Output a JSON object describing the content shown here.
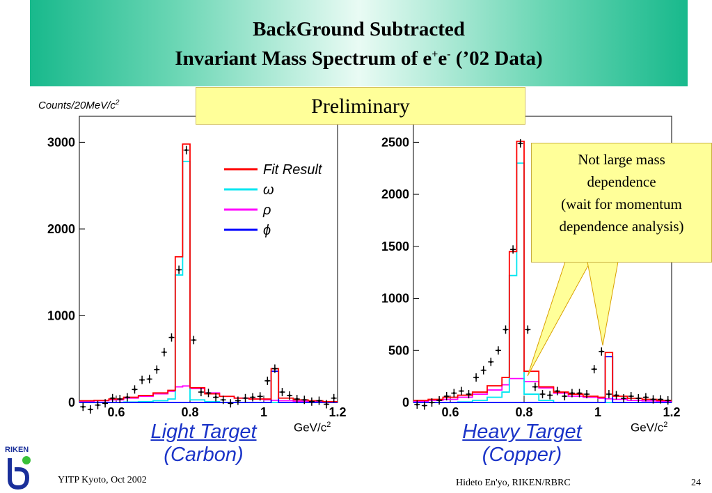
{
  "slide": {
    "title_line1": "BackGround Subtracted",
    "title_line2_parts": [
      "Invariant Mass Spectrum of e",
      "+",
      "e",
      "-",
      " (’02 Data)"
    ],
    "preliminary": "Preliminary",
    "callout_lines": [
      "Not large mass",
      "dependence",
      "(wait for momentum",
      "dependence analysis)"
    ],
    "y_label_parts": [
      "Counts/20MeV/c",
      "2"
    ],
    "footer_left": "YITP Kyoto, Oct 2002",
    "footer_center": "Hideto En'yo, RIKEN/RBRC",
    "page_number": "24",
    "logo_text": "RIKEN",
    "accent_color": "#18b98c",
    "caption_color": "#1b34c8",
    "callout_color": "#ffff99"
  },
  "chart_data": [
    {
      "type": "histogram",
      "caption_line1": "Light Target",
      "caption_line2": "(Carbon)",
      "x_unit_parts": [
        "GeV/c",
        "2"
      ],
      "xlim": [
        0.5,
        1.2
      ],
      "ylim": [
        0,
        3300
      ],
      "x_ticks": [
        "0.6",
        "0.8",
        "1",
        "1.2"
      ],
      "y_ticks": [
        "0",
        "1000",
        "2000",
        "3000"
      ],
      "legend": [
        {
          "name": "Fit Result",
          "color": "#ff0000"
        },
        {
          "name": "ω",
          "color": "#00e6f0"
        },
        {
          "name": "ρ",
          "color": "#ff00ff"
        },
        {
          "name": "ϕ",
          "color": "#0000ff"
        }
      ],
      "data_points": {
        "x": [
          0.51,
          0.53,
          0.55,
          0.57,
          0.59,
          0.61,
          0.63,
          0.65,
          0.67,
          0.69,
          0.71,
          0.73,
          0.75,
          0.77,
          0.79,
          0.81,
          0.83,
          0.85,
          0.87,
          0.89,
          0.91,
          0.93,
          0.95,
          0.97,
          0.99,
          1.01,
          1.03,
          1.05,
          1.07,
          1.09,
          1.11,
          1.13,
          1.15,
          1.17,
          1.19
        ],
        "y": [
          -50,
          -80,
          -30,
          -10,
          50,
          40,
          60,
          150,
          260,
          270,
          380,
          580,
          750,
          1530,
          2910,
          720,
          120,
          110,
          60,
          30,
          -10,
          20,
          50,
          60,
          70,
          250,
          390,
          120,
          80,
          40,
          30,
          10,
          20,
          -20,
          50
        ]
      },
      "series": [
        {
          "name": "Fit Result",
          "x_edges": [
            0.5,
            0.54,
            0.58,
            0.62,
            0.66,
            0.7,
            0.74,
            0.76,
            0.78,
            0.8,
            0.84,
            0.88,
            0.92,
            0.96,
            1.0,
            1.02,
            1.04,
            1.08,
            1.12,
            1.16,
            1.2
          ],
          "values": [
            20,
            25,
            40,
            60,
            80,
            110,
            140,
            1680,
            2980,
            170,
            100,
            70,
            50,
            40,
            40,
            390,
            50,
            30,
            20,
            10
          ]
        },
        {
          "name": "ω",
          "x_edges": [
            0.5,
            0.54,
            0.58,
            0.62,
            0.66,
            0.7,
            0.74,
            0.76,
            0.78,
            0.8,
            0.84,
            0.88,
            0.92,
            0.96,
            1.0,
            1.02,
            1.04,
            1.08,
            1.12,
            1.16,
            1.2
          ],
          "values": [
            0,
            0,
            0,
            5,
            10,
            20,
            40,
            1470,
            2780,
            30,
            10,
            0,
            0,
            0,
            0,
            0,
            0,
            0,
            0,
            0
          ]
        },
        {
          "name": "ρ",
          "x_edges": [
            0.5,
            0.54,
            0.58,
            0.62,
            0.66,
            0.7,
            0.74,
            0.76,
            0.78,
            0.8,
            0.84,
            0.88,
            0.92,
            0.96,
            1.0,
            1.02,
            1.04,
            1.08,
            1.12,
            1.16,
            1.2
          ],
          "values": [
            10,
            20,
            30,
            50,
            70,
            100,
            130,
            180,
            190,
            160,
            110,
            70,
            50,
            40,
            30,
            25,
            20,
            15,
            10,
            5
          ]
        },
        {
          "name": "ϕ",
          "x_edges": [
            0.5,
            0.54,
            0.58,
            0.62,
            0.66,
            0.7,
            0.74,
            0.76,
            0.78,
            0.8,
            0.84,
            0.88,
            0.92,
            0.96,
            1.0,
            1.02,
            1.04,
            1.08,
            1.12,
            1.16,
            1.2
          ],
          "values": [
            0,
            0,
            0,
            0,
            0,
            0,
            0,
            0,
            0,
            0,
            0,
            0,
            0,
            0,
            0,
            360,
            0,
            0,
            0,
            0
          ]
        }
      ]
    },
    {
      "type": "histogram",
      "caption_line1": "Heavy Target",
      "caption_line2": "(Copper)",
      "x_unit_parts": [
        "GeV/c",
        "2"
      ],
      "xlim": [
        0.5,
        1.2
      ],
      "ylim": [
        0,
        2750
      ],
      "x_ticks": [
        "0.6",
        "0.8",
        "1",
        "1.2"
      ],
      "y_ticks": [
        "0",
        "500",
        "1000",
        "1500",
        "2000",
        "2500"
      ],
      "data_points": {
        "x": [
          0.51,
          0.53,
          0.55,
          0.57,
          0.59,
          0.61,
          0.63,
          0.65,
          0.67,
          0.69,
          0.71,
          0.73,
          0.75,
          0.77,
          0.79,
          0.81,
          0.83,
          0.85,
          0.87,
          0.89,
          0.91,
          0.93,
          0.95,
          0.97,
          0.99,
          1.01,
          1.03,
          1.05,
          1.07,
          1.09,
          1.11,
          1.13,
          1.15,
          1.17,
          1.19
        ],
        "y": [
          -20,
          -30,
          0,
          20,
          60,
          90,
          110,
          80,
          240,
          310,
          390,
          500,
          700,
          1470,
          2490,
          700,
          150,
          80,
          70,
          110,
          60,
          90,
          90,
          80,
          320,
          490,
          80,
          70,
          40,
          60,
          40,
          50,
          30,
          30,
          20
        ]
      },
      "series": [
        {
          "name": "Fit Result",
          "x_edges": [
            0.5,
            0.54,
            0.58,
            0.62,
            0.66,
            0.7,
            0.74,
            0.76,
            0.78,
            0.8,
            0.84,
            0.88,
            0.92,
            0.96,
            1.0,
            1.02,
            1.04,
            1.08,
            1.12,
            1.16,
            1.2
          ],
          "values": [
            20,
            30,
            50,
            70,
            100,
            160,
            240,
            1450,
            2510,
            300,
            150,
            100,
            80,
            60,
            50,
            480,
            60,
            40,
            30,
            20
          ]
        },
        {
          "name": "ω",
          "x_edges": [
            0.5,
            0.54,
            0.58,
            0.62,
            0.66,
            0.7,
            0.74,
            0.76,
            0.78,
            0.8,
            0.84,
            0.88,
            0.92,
            0.96,
            1.0,
            1.02,
            1.04,
            1.08,
            1.12,
            1.16,
            1.2
          ],
          "values": [
            0,
            0,
            0,
            5,
            20,
            50,
            100,
            1220,
            2300,
            80,
            20,
            0,
            0,
            0,
            0,
            0,
            0,
            0,
            0,
            0
          ]
        },
        {
          "name": "ρ",
          "x_edges": [
            0.5,
            0.54,
            0.58,
            0.62,
            0.66,
            0.7,
            0.74,
            0.76,
            0.78,
            0.8,
            0.84,
            0.88,
            0.92,
            0.96,
            1.0,
            1.02,
            1.04,
            1.08,
            1.12,
            1.16,
            1.2
          ],
          "values": [
            10,
            20,
            30,
            50,
            80,
            120,
            170,
            230,
            230,
            200,
            140,
            90,
            60,
            50,
            40,
            35,
            30,
            20,
            15,
            10
          ]
        },
        {
          "name": "ϕ",
          "x_edges": [
            0.5,
            0.54,
            0.58,
            0.62,
            0.66,
            0.7,
            0.74,
            0.76,
            0.78,
            0.8,
            0.84,
            0.88,
            0.92,
            0.96,
            1.0,
            1.02,
            1.04,
            1.08,
            1.12,
            1.16,
            1.2
          ],
          "values": [
            0,
            0,
            0,
            0,
            0,
            0,
            0,
            0,
            0,
            0,
            0,
            0,
            0,
            0,
            0,
            440,
            0,
            0,
            0,
            0
          ]
        }
      ]
    }
  ]
}
